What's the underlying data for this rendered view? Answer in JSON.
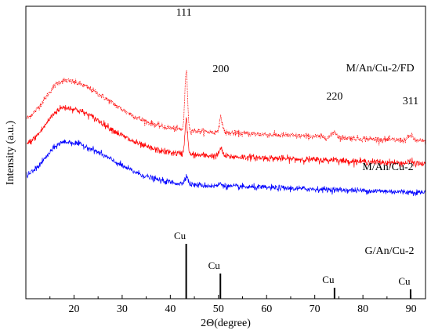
{
  "chart_data": {
    "type": "line",
    "xlabel": "2Θ(degree)",
    "ylabel": "Intensity (a.u.)",
    "xlim": [
      10,
      93
    ],
    "xticks": [
      20,
      30,
      40,
      50,
      60,
      70,
      80,
      90
    ],
    "y_tick_labels": false,
    "grid": false,
    "series": [
      {
        "name": "M/An/Cu-2/FD",
        "color": "#ff0000",
        "style": "dotted",
        "baseline": 0.3,
        "amorphous_peak": {
          "center": 18.0,
          "height": 0.55,
          "width": 6.5
        },
        "slope": 0.0025,
        "noise": 0.018,
        "peaks": [
          {
            "position": 43.3,
            "height": 0.72,
            "width": 0.28
          },
          {
            "position": 50.5,
            "height": 0.17,
            "width": 0.35
          },
          {
            "position": 74.1,
            "height": 0.07,
            "width": 0.45
          },
          {
            "position": 89.9,
            "height": 0.06,
            "width": 0.55
          }
        ]
      },
      {
        "name": "M/An/Cu-2",
        "color": "#ff0000",
        "style": "solid",
        "baseline": 0.0,
        "amorphous_peak": {
          "center": 18.0,
          "height": 0.52,
          "width": 6.3
        },
        "slope": 0.0022,
        "noise": 0.02,
        "peaks": [
          {
            "position": 43.3,
            "height": 0.42,
            "width": 0.28
          },
          {
            "position": 50.5,
            "height": 0.09,
            "width": 0.35
          },
          {
            "position": 74.1,
            "height": 0.02,
            "width": 0.45
          },
          {
            "position": 89.9,
            "height": 0.02,
            "width": 0.55
          }
        ]
      },
      {
        "name": "G/An/Cu-2",
        "color": "#0000ff",
        "style": "solid",
        "baseline": -0.38,
        "amorphous_peak": {
          "center": 18.2,
          "height": 0.48,
          "width": 6.6
        },
        "slope": 0.0018,
        "noise": 0.018,
        "peaks": [
          {
            "position": 43.3,
            "height": 0.1,
            "width": 0.35
          },
          {
            "position": 50.5,
            "height": 0.03,
            "width": 0.4
          }
        ]
      }
    ],
    "series_labels": [
      {
        "text": "M/An/Cu-2/FD"
      },
      {
        "text": "M/An/Cu-2"
      },
      {
        "text": "G/An/Cu-2"
      }
    ],
    "peak_labels": [
      {
        "text": "111",
        "position": 43.3
      },
      {
        "text": "200",
        "position": 50.5
      },
      {
        "text": "220",
        "position": 74.1
      },
      {
        "text": "311",
        "position": 89.9
      }
    ],
    "reference": {
      "name": "Cu",
      "lines": [
        {
          "position": 43.3,
          "relative_intensity": 1.0,
          "label": "Cu"
        },
        {
          "position": 50.4,
          "relative_intensity": 0.46,
          "label": "Cu"
        },
        {
          "position": 74.1,
          "relative_intensity": 0.2,
          "label": "Cu"
        },
        {
          "position": 89.9,
          "relative_intensity": 0.17,
          "label": "Cu"
        }
      ]
    }
  }
}
